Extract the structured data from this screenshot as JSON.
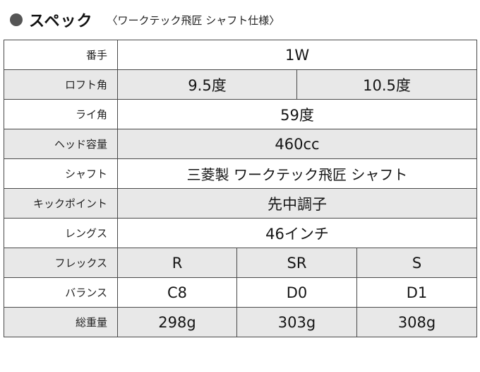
{
  "heading": {
    "bullet": "●",
    "title": "スペック",
    "subtitle": "〈ワークテック飛匠 シャフト仕様〉"
  },
  "spec": {
    "head": {
      "label": "番手",
      "value": "1W"
    },
    "loft": {
      "label": "ロフト角",
      "values": [
        "9.5度",
        "10.5度"
      ]
    },
    "lie": {
      "label": "ライ角",
      "value": "59度"
    },
    "volume": {
      "label": "ヘッド容量",
      "value": "460cc"
    },
    "shaft": {
      "label": "シャフト",
      "value": "三菱製 ワークテック飛匠 シャフト"
    },
    "kickpoint": {
      "label": "キックポイント",
      "value": "先中調子"
    },
    "length": {
      "label": "レングス",
      "value": "46インチ"
    },
    "flex": {
      "label": "フレックス",
      "values": [
        "R",
        "SR",
        "S"
      ]
    },
    "balance": {
      "label": "バランス",
      "values": [
        "C8",
        "D0",
        "D1"
      ]
    },
    "weight": {
      "label": "総重量",
      "values": [
        "298g",
        "303g",
        "308g"
      ]
    }
  },
  "colors": {
    "shaded_row": "#e8e8e8",
    "border": "#4a4a4a",
    "bullet": "#555555"
  }
}
